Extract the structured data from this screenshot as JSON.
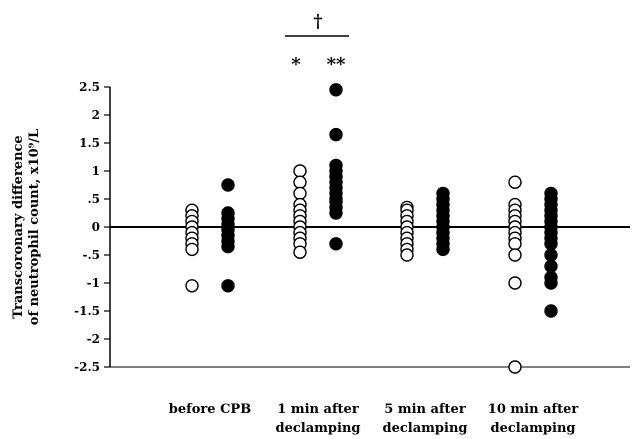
{
  "chart_data": {
    "type": "scatter",
    "ylabel_lines": [
      "Transcoronary difference",
      "of neutrophil count, x10⁹/L"
    ],
    "ylim": [
      -2.5,
      2.5
    ],
    "yticks": [
      "2.5",
      "2",
      "1.5",
      "1",
      ".5",
      "0",
      "-.5",
      "-1",
      "-1.5",
      "-2",
      "-2.5"
    ],
    "ytick_values": [
      2.5,
      2,
      1.5,
      1,
      0.5,
      0,
      -0.5,
      -1,
      -1.5,
      -2,
      -2.5
    ],
    "grid": false,
    "zero_line": true,
    "categories": [
      {
        "lines": [
          "before CPB"
        ]
      },
      {
        "lines": [
          "1 min after",
          "declamping"
        ]
      },
      {
        "lines": [
          "5 min after",
          "declamping"
        ]
      },
      {
        "lines": [
          "10 min after",
          "declamping"
        ]
      }
    ],
    "series": [
      {
        "marker": "open-circle",
        "values": [
          [
            0.3,
            0.2,
            0.1,
            0.0,
            -0.1,
            -0.2,
            -0.3,
            -0.4,
            -1.05
          ],
          [
            1.0,
            0.8,
            0.6,
            0.4,
            0.3,
            0.2,
            0.1,
            0.0,
            -0.1,
            -0.2,
            -0.3,
            -0.45
          ],
          [
            0.35,
            0.3,
            0.2,
            0.1,
            0.0,
            -0.1,
            -0.2,
            -0.3,
            -0.4,
            -0.5
          ],
          [
            0.8,
            0.4,
            0.3,
            0.2,
            0.1,
            0.0,
            -0.1,
            -0.2,
            -0.3,
            -0.5,
            -1.0,
            -2.5
          ]
        ]
      },
      {
        "marker": "filled-circle",
        "values": [
          [
            0.75,
            0.25,
            0.15,
            0.05,
            -0.05,
            -0.15,
            -0.25,
            -0.35,
            -1.05
          ],
          [
            2.45,
            1.65,
            1.1,
            1.0,
            0.9,
            0.8,
            0.7,
            0.6,
            0.5,
            0.45,
            0.35,
            0.25,
            -0.3
          ],
          [
            0.6,
            0.5,
            0.4,
            0.3,
            0.2,
            0.1,
            0.0,
            -0.1,
            -0.2,
            -0.3,
            -0.4
          ],
          [
            0.6,
            0.5,
            0.4,
            0.3,
            0.2,
            0.1,
            0.0,
            -0.1,
            -0.2,
            -0.3,
            -0.5,
            -0.7,
            -0.9,
            -1.0,
            -1.5
          ]
        ]
      }
    ],
    "annotations": {
      "dagger": "†",
      "open_mark": "*",
      "filled_mark": "**",
      "category_index": 1
    }
  }
}
